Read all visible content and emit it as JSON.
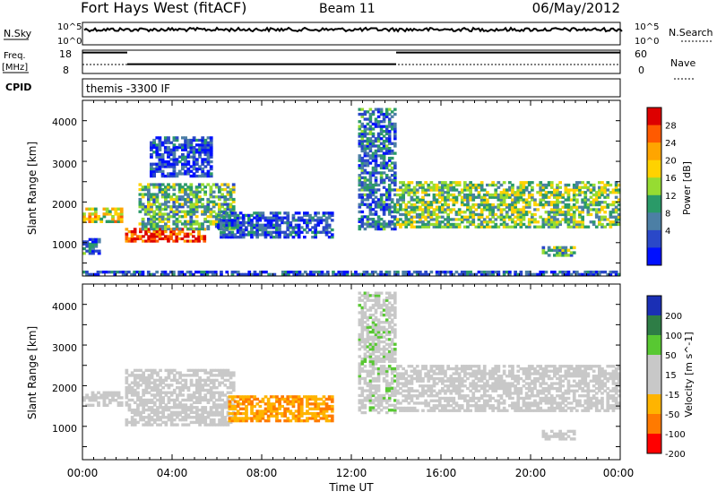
{
  "header": {
    "station": "Fort Hays West (fitACF)",
    "beam": "Beam 11",
    "date": "06/May/2012"
  },
  "strip_nsky": {
    "left_label": "N.Sky",
    "right_label": "N.Search",
    "tick_top": "10^5",
    "tick_bottom": "10^0"
  },
  "strip_freq": {
    "left_label_1": "Freq.",
    "left_label_2": "[MHz]",
    "right_label": "Nave",
    "left_ticks": [
      "18",
      "8"
    ],
    "right_ticks": [
      "60",
      "0"
    ],
    "freq_steps": [
      {
        "t_start": 0.0,
        "t_end": 2.0,
        "level": 17
      },
      {
        "t_start": 2.0,
        "t_end": 14.0,
        "level": 12
      },
      {
        "t_start": 14.0,
        "t_end": 24.0,
        "level": 17
      }
    ]
  },
  "strip_cpid": {
    "label": "CPID",
    "mode_text": "themis -3300 IF"
  },
  "panels": [
    {
      "id": "power",
      "ylabel": "Slant Range [km]",
      "yticks": [
        "1000",
        "2000",
        "3000",
        "4000"
      ],
      "colorbar": {
        "label": "Power [dB]",
        "ticks": [
          "28",
          "24",
          "20",
          "16",
          "12",
          "8",
          "4"
        ],
        "colors": [
          "#dd0000",
          "#ff5a00",
          "#ffa500",
          "#ffd200",
          "#96dc32",
          "#2a9a68",
          "#4c7fa5",
          "#2a48c8",
          "#0010ff"
        ]
      }
    },
    {
      "id": "velocity",
      "ylabel": "Slant Range [km]",
      "yticks": [
        "1000",
        "2000",
        "3000",
        "4000"
      ],
      "colorbar": {
        "label": "Velocity [m s^-1]",
        "ticks": [
          "200",
          "100",
          "50",
          "15",
          "-15",
          "-50",
          "-100",
          "-200"
        ],
        "colors": [
          "#1a2fb5",
          "#2e7d46",
          "#58c832",
          "#c8c8c8",
          "#c8c8c8",
          "#ffb400",
          "#ff7a00",
          "#ff0000"
        ]
      }
    }
  ],
  "xaxis": {
    "label": "Time UT",
    "ticks": [
      "00:00",
      "04:00",
      "08:00",
      "12:00",
      "16:00",
      "20:00",
      "00:00"
    ]
  },
  "chart_data": [
    {
      "type": "heatmap",
      "quantity": "Power",
      "units": "dB",
      "x_range_hours": [
        0,
        24
      ],
      "y_range_km": [
        180,
        4500
      ],
      "clim": [
        0,
        30
      ],
      "bands": [
        {
          "t_start": 0.0,
          "t_end": 1.8,
          "range_low": 1480,
          "range_high": 1850,
          "value": 18
        },
        {
          "t_start": 0.0,
          "t_end": 0.8,
          "range_low": 700,
          "range_high": 1100,
          "value": 8
        },
        {
          "t_start": 1.9,
          "t_end": 5.5,
          "range_low": 1000,
          "range_high": 1350,
          "value": 26
        },
        {
          "t_start": 2.5,
          "t_end": 6.8,
          "range_low": 1300,
          "range_high": 2450,
          "value": 12
        },
        {
          "t_start": 3.0,
          "t_end": 5.8,
          "range_low": 2600,
          "range_high": 3600,
          "value": 5
        },
        {
          "t_start": 6.0,
          "t_end": 11.2,
          "range_low": 1100,
          "range_high": 1750,
          "value": 6
        },
        {
          "t_start": 12.3,
          "t_end": 14.0,
          "range_low": 1300,
          "range_high": 4300,
          "value": 8
        },
        {
          "t_start": 14.0,
          "t_end": 24.0,
          "range_low": 1350,
          "range_high": 2500,
          "value": 14
        },
        {
          "t_start": 20.5,
          "t_end": 22.0,
          "range_low": 650,
          "range_high": 900,
          "value": 12
        },
        {
          "t_start": 0.0,
          "t_end": 24.0,
          "range_low": 180,
          "range_high": 300,
          "value": 6
        }
      ]
    },
    {
      "type": "heatmap",
      "quantity": "Velocity",
      "units": "m s^-1",
      "x_range_hours": [
        0,
        24
      ],
      "y_range_km": [
        180,
        4500
      ],
      "clim": [
        -250,
        250
      ],
      "bands": [
        {
          "t_start": 0.0,
          "t_end": 1.8,
          "range_low": 1480,
          "range_high": 1850,
          "value": 0
        },
        {
          "t_start": 1.9,
          "t_end": 6.8,
          "range_low": 1000,
          "range_high": 2400,
          "value": 0
        },
        {
          "t_start": 6.5,
          "t_end": 11.2,
          "range_low": 1100,
          "range_high": 1750,
          "value": -70
        },
        {
          "t_start": 12.3,
          "t_end": 14.0,
          "range_low": 1300,
          "range_high": 4300,
          "value": 10
        },
        {
          "t_start": 14.0,
          "t_end": 24.0,
          "range_low": 1350,
          "range_high": 2500,
          "value": 0
        },
        {
          "t_start": 20.5,
          "t_end": 22.0,
          "range_low": 650,
          "range_high": 900,
          "value": 0
        }
      ]
    }
  ]
}
